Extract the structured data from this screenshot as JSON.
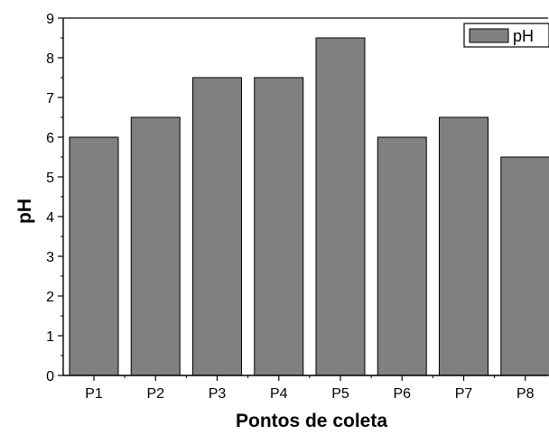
{
  "chart_data": {
    "type": "bar",
    "categories": [
      "P1",
      "P2",
      "P3",
      "P4",
      "P5",
      "P6",
      "P7",
      "P8"
    ],
    "series": [
      {
        "name": "pH",
        "values": [
          6.0,
          6.5,
          7.5,
          7.5,
          8.5,
          6.0,
          6.5,
          5.5
        ]
      }
    ],
    "xlabel": "Pontos de coleta",
    "ylabel": "pH",
    "ylim": [
      0,
      9
    ],
    "yticks": [
      "0",
      "1",
      "2",
      "3",
      "4",
      "5",
      "6",
      "7",
      "8",
      "9"
    ],
    "grid": false,
    "legend": {
      "position": "top-right",
      "entries": [
        "pH"
      ]
    },
    "colors": {
      "bar": "#808080",
      "stroke": "#000000"
    }
  }
}
